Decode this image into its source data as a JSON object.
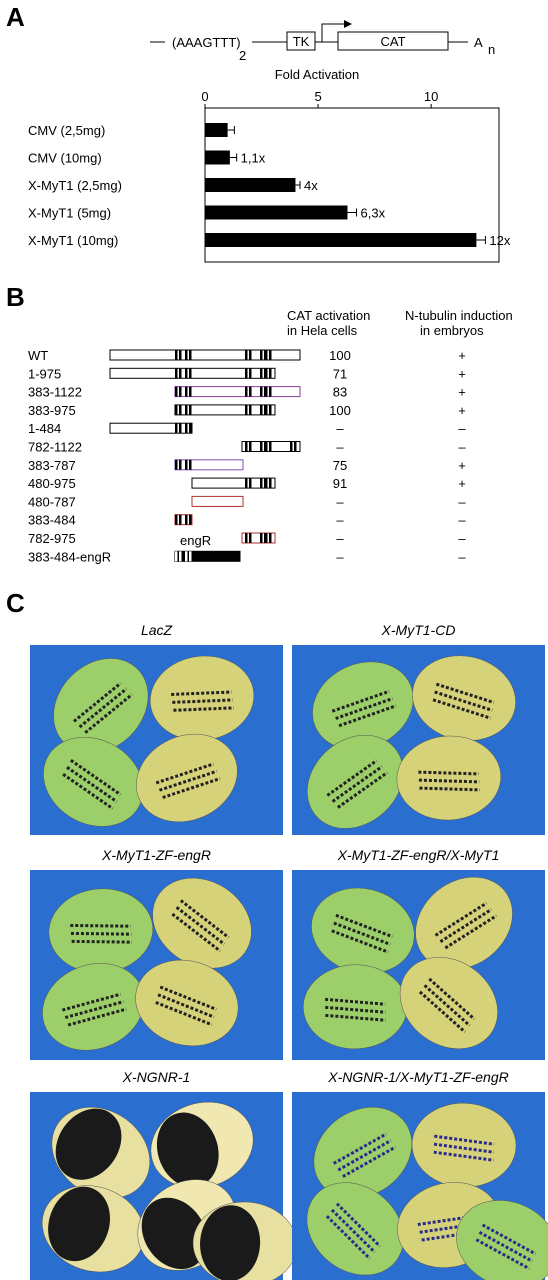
{
  "panels": [
    "A",
    "B",
    "C"
  ],
  "construct": {
    "promoter": "(AAAGTTT)",
    "repeat": "2",
    "tk": "TK",
    "cat": "CAT",
    "polya": "A",
    "polya_sub": "n"
  },
  "chart_data": {
    "type": "bar",
    "orientation": "horizontal",
    "xlabel": "Fold Activation",
    "categories": [
      "CMV (2,5mg)",
      "CMV (10mg)",
      "X-MyT1 (2,5mg)",
      "X-MyT1 (5mg)",
      "X-MyT1 (10mg)"
    ],
    "values": [
      1,
      1.1,
      4,
      6.3,
      12
    ],
    "errors": [
      0.3,
      0.3,
      0.2,
      0.4,
      0.4
    ],
    "value_labels": [
      null,
      "1,1x",
      "4x",
      "6,3x",
      "12x"
    ],
    "color": "#000000",
    "xlim": [
      0,
      13
    ],
    "xticks": [
      0,
      5,
      10
    ]
  },
  "table": {
    "cat_header": [
      "CAT activation",
      "in Hela cells"
    ],
    "tubulin_header": [
      "N-tubulin induction",
      "in embryos"
    ],
    "engr_label": "engR",
    "rows": [
      [
        "WT",
        "100",
        "+"
      ],
      [
        "1-975",
        "71",
        "+"
      ],
      [
        "383-1122",
        "83",
        "+"
      ],
      [
        "383-975",
        "100",
        "+"
      ],
      [
        "1-484",
        "–",
        "–"
      ],
      [
        "782-1122",
        "–",
        "–"
      ],
      [
        "383-787",
        "75",
        "+"
      ],
      [
        "480-975",
        "91",
        "+"
      ],
      [
        "480-787",
        "–",
        "–"
      ],
      [
        "383-484",
        "–",
        "–"
      ],
      [
        "782-975",
        "–",
        "–"
      ],
      [
        "383-484-engR",
        "–",
        "–"
      ]
    ]
  },
  "images": [
    {
      "title": "LacZ"
    },
    {
      "title": "X-MyT1-CD"
    },
    {
      "title": "X-MyT1-ZF-engR"
    },
    {
      "title": "X-MyT1-ZF-engR/X-MyT1"
    },
    {
      "title": "X-NGNR-1"
    },
    {
      "title": "X-NGNR-1/X-MyT1-ZF-engR"
    }
  ]
}
